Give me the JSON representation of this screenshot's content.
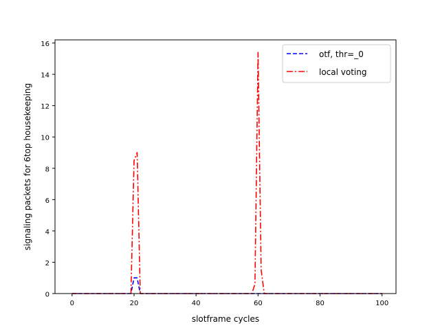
{
  "chart_data": {
    "type": "line",
    "title": "",
    "xlabel": "slotframe cycles",
    "ylabel": "signaling packets for 6top housekeeping",
    "xlim": [
      -5.5,
      104.5
    ],
    "ylim": [
      0,
      16.2
    ],
    "xticks": [
      0,
      20,
      40,
      60,
      80,
      100
    ],
    "yticks": [
      0,
      2,
      4,
      6,
      8,
      10,
      12,
      14,
      16
    ],
    "grid": false,
    "legend_position": "top-right",
    "series": [
      {
        "name": "otf, thr=_0",
        "color": "#0000ff",
        "dash": "dashed",
        "x": [
          0,
          19,
          20,
          21,
          22,
          100
        ],
        "y": [
          0,
          0,
          1.0,
          1.0,
          0,
          0
        ]
      },
      {
        "name": "local voting",
        "color": "#ff0000",
        "dash": "dashdot",
        "x": [
          0,
          19,
          20,
          21,
          22,
          58,
          59,
          60,
          61,
          62,
          100
        ],
        "y": [
          0,
          0,
          8.5,
          9.0,
          0,
          0,
          0.6,
          15.4,
          1.5,
          0,
          0
        ]
      }
    ]
  }
}
